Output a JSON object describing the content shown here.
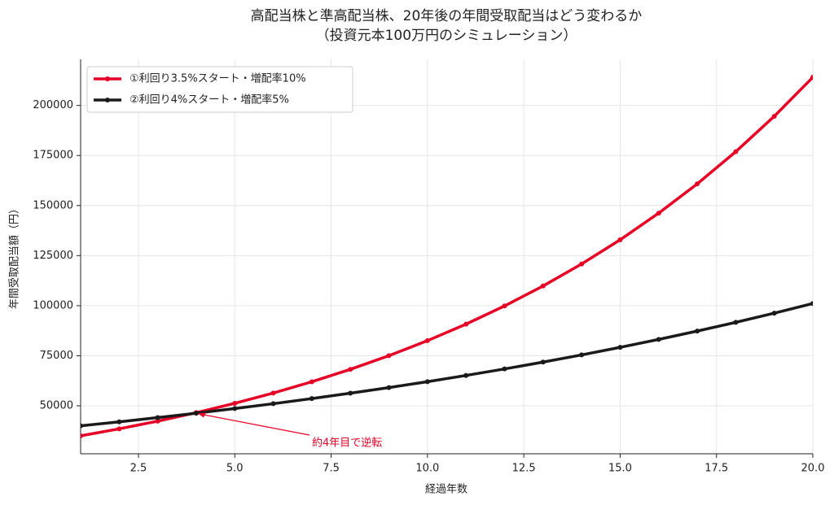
{
  "chart_data": {
    "type": "line",
    "title": "高配当株と準高配当株、20年後の年間受取配当はどう変わるか",
    "subtitle": "（投資元本100万円のシミュレーション）",
    "x_label": "経過年数",
    "y_label": "年間受取配当額（円）",
    "x": [
      1,
      2,
      3,
      4,
      5,
      6,
      7,
      8,
      9,
      10,
      11,
      12,
      13,
      14,
      15,
      16,
      17,
      18,
      19,
      20
    ],
    "series": [
      {
        "name": "①利回り3.5%スタート・増配率10%",
        "color": "#e60026",
        "values": [
          35000,
          38500,
          42350,
          46585,
          51244,
          56368,
          62005,
          68205,
          75026,
          82528,
          90781,
          99859,
          109845,
          120830,
          132912,
          146204,
          160824,
          176907,
          194597,
          214057
        ]
      },
      {
        "name": "②利回り4%スタート・増配率5%",
        "color": "#1a1a1a",
        "values": [
          40000,
          42000,
          44100,
          46305,
          48620,
          51051,
          53604,
          56284,
          59098,
          62053,
          65156,
          68414,
          71834,
          75426,
          79197,
          83157,
          87315,
          91681,
          96265,
          101078
        ]
      }
    ],
    "annotation": "約4年目で逆転",
    "annotation_color": "#e60026",
    "xlim": [
      1,
      20
    ],
    "xticks": [
      2.5,
      {
        "value": 5,
        "label": "5.0"
      },
      7.5,
      {
        "value": 10,
        "label": "10.0"
      },
      12.5,
      {
        "value": 15,
        "label": "15.0"
      },
      17.5,
      {
        "value": 20,
        "label": "20.0"
      }
    ],
    "ylim": [
      26047,
      223010
    ],
    "yticks": [
      50000,
      75000,
      100000,
      125000,
      150000,
      175000,
      200000
    ],
    "grid": true,
    "legend": "upper-left"
  }
}
